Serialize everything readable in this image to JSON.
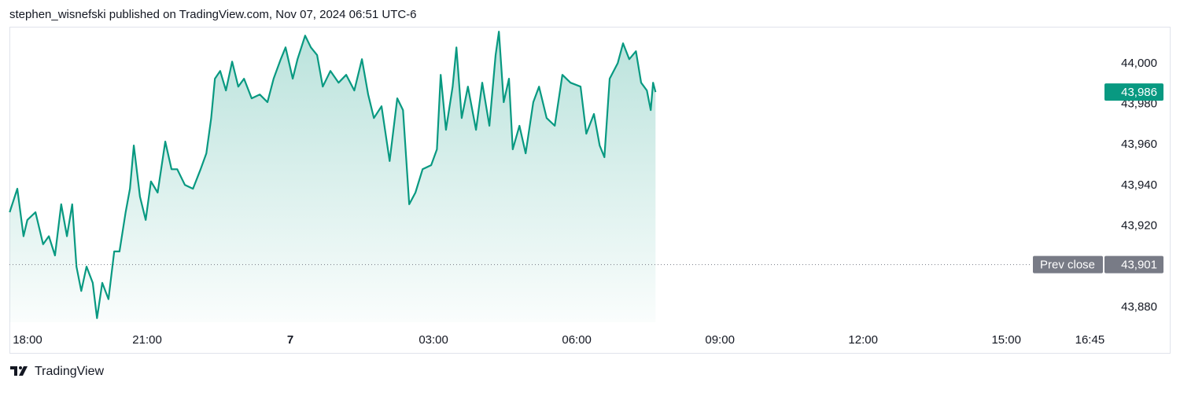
{
  "header": {
    "title": "stephen_wisnefski published on TradingView.com, Nov 07, 2024 06:51 UTC-6"
  },
  "footer": {
    "brand": "TradingView"
  },
  "chart_data": {
    "type": "area",
    "color": "#089981",
    "x": [
      0.12,
      0.28,
      0.41,
      0.49,
      0.66,
      0.82,
      0.94,
      1.07,
      1.2,
      1.32,
      1.43,
      1.52,
      1.62,
      1.73,
      1.86,
      1.95,
      2.06,
      2.19,
      2.31,
      2.42,
      2.55,
      2.64,
      2.72,
      2.85,
      2.97,
      3.08,
      3.22,
      3.38,
      3.51,
      3.63,
      3.79,
      3.96,
      4.12,
      4.24,
      4.34,
      4.42,
      4.53,
      4.65,
      4.78,
      4.91,
      5.03,
      5.19,
      5.36,
      5.52,
      5.65,
      5.8,
      5.9,
      6.05,
      6.15,
      6.31,
      6.43,
      6.56,
      6.68,
      6.84,
      7.01,
      7.17,
      7.34,
      7.5,
      7.63,
      7.75,
      7.91,
      8.08,
      8.24,
      8.36,
      8.49,
      8.62,
      8.77,
      8.95,
      9.07,
      9.15,
      9.26,
      9.4,
      9.48,
      9.59,
      9.72,
      9.89,
      10.02,
      10.17,
      10.3,
      10.37,
      10.47,
      10.58,
      10.66,
      10.8,
      10.93,
      11.09,
      11.21,
      11.37,
      11.54,
      11.7,
      11.87,
      12.08,
      12.2,
      12.36,
      12.48,
      12.58,
      12.69,
      12.86,
      12.97,
      13.1,
      13.24,
      13.35,
      13.47,
      13.55,
      13.6,
      13.65
    ],
    "values": [
      43926.8,
      43938.4,
      43915,
      43923,
      43926.8,
      43911,
      43915,
      43905.5,
      43930.7,
      43915,
      43930.7,
      43900,
      43888,
      43900,
      43892,
      43874.6,
      43892,
      43884,
      43907.5,
      43907.5,
      43926.8,
      43938.4,
      43959.7,
      43934.5,
      43923,
      43942,
      43936.5,
      43961.6,
      43948,
      43948,
      43940.3,
      43938.4,
      43948,
      43955.8,
      43973,
      43992.6,
      43996.4,
      43986.8,
      44001,
      43988.7,
      43992.6,
      43982.9,
      43984.8,
      43981,
      43992.6,
      44002.2,
      44008,
      43992.6,
      44002.2,
      44013.8,
      44008,
      44004.2,
      43988.7,
      43996.4,
      43990.6,
      43994.5,
      43986.8,
      44002.2,
      43984.8,
      43973.2,
      43979,
      43952,
      43982.9,
      43977.1,
      43930.7,
      43936.5,
      43948,
      43950,
      43957.8,
      43994.5,
      43967.4,
      43988.7,
      44008,
      43973.2,
      43988.7,
      43967.4,
      43990.6,
      43969.4,
      44004.2,
      44015.8,
      43981,
      43992.6,
      43957.8,
      43969.4,
      43955.8,
      43981,
      43988.7,
      43973.2,
      43969.4,
      43994.5,
      43990.6,
      43988.7,
      43965.5,
      43975.2,
      43959.7,
      43953.9,
      43992.6,
      44000.3,
      44010,
      44002.2,
      44006.1,
      43990.6,
      43986.8,
      43977.1,
      43990.6,
      43986
    ],
    "xlim": [
      0.115,
      23.04
    ],
    "ylim": [
      43872.6,
      44017.8
    ],
    "xticks": [
      {
        "value": 0,
        "label": "18:00"
      },
      {
        "value": 3,
        "label": "21:00"
      },
      {
        "value": 6,
        "label": "7"
      },
      {
        "value": 9,
        "label": "03:00"
      },
      {
        "value": 12,
        "label": "06:00"
      },
      {
        "value": 15,
        "label": "09:00"
      },
      {
        "value": 18,
        "label": "12:00"
      },
      {
        "value": 21,
        "label": "15:00"
      },
      {
        "value": 22.75,
        "label": "16:45"
      }
    ],
    "yticks": [
      {
        "value": 43880,
        "label": "43,880"
      },
      {
        "value": 43920,
        "label": "43,920"
      },
      {
        "value": 43940,
        "label": "43,940"
      },
      {
        "value": 43960,
        "label": "43,960"
      },
      {
        "value": 43980,
        "label": "43,980"
      },
      {
        "value": 44000,
        "label": "44,000"
      }
    ],
    "last_price": {
      "value": 43986,
      "label": "43,986"
    },
    "prev_close": {
      "label": "Prev close",
      "value": 43901,
      "value_label": "43,901"
    }
  }
}
